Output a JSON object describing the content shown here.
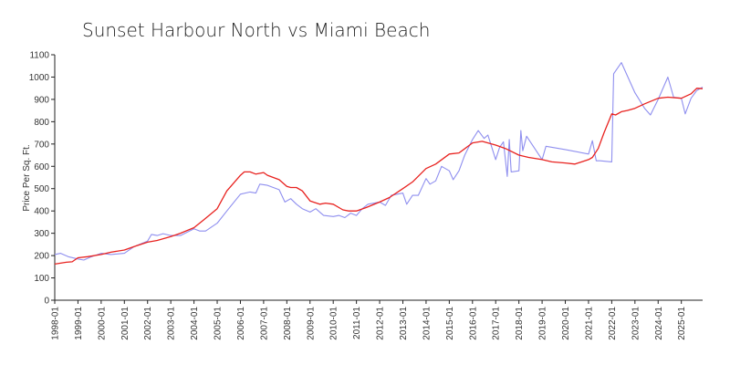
{
  "chart_data": {
    "type": "line",
    "title": "Sunset Harbour North vs Miami Beach",
    "xlabel": "",
    "ylabel": "Price Per Sq. Ft.",
    "ylim": [
      0,
      1100
    ],
    "yticks": [
      0,
      100,
      200,
      300,
      400,
      500,
      600,
      700,
      800,
      900,
      1000,
      1100
    ],
    "xlim": [
      "1998-01",
      "2025-12"
    ],
    "xticks": [
      "1998-01",
      "1999-01",
      "2000-01",
      "2001-01",
      "2002-01",
      "2003-01",
      "2004-01",
      "2005-01",
      "2006-01",
      "2007-01",
      "2008-01",
      "2009-01",
      "2010-01",
      "2011-01",
      "2012-01",
      "2013-01",
      "2014-01",
      "2015-01",
      "2016-01",
      "2017-01",
      "2018-01",
      "2019-01",
      "2020-01",
      "2021-01",
      "2022-01",
      "2023-01",
      "2024-01",
      "2025-01"
    ],
    "grid": false,
    "legend": "none",
    "series": [
      {
        "color": "#e8221f",
        "points": [
          [
            "1998-01",
            162
          ],
          [
            "1998-07",
            170
          ],
          [
            "1998-10",
            172
          ],
          [
            "1999-01",
            190
          ],
          [
            "1999-06",
            195
          ],
          [
            "2000-01",
            205
          ],
          [
            "2000-06",
            215
          ],
          [
            "2001-01",
            225
          ],
          [
            "2001-06",
            240
          ],
          [
            "2002-01",
            260
          ],
          [
            "2002-06",
            268
          ],
          [
            "2003-01",
            285
          ],
          [
            "2003-06",
            300
          ],
          [
            "2004-01",
            325
          ],
          [
            "2004-06",
            360
          ],
          [
            "2005-01",
            410
          ],
          [
            "2005-06",
            490
          ],
          [
            "2006-01",
            560
          ],
          [
            "2006-03",
            575
          ],
          [
            "2006-06",
            575
          ],
          [
            "2006-09",
            565
          ],
          [
            "2007-01",
            572
          ],
          [
            "2007-03",
            560
          ],
          [
            "2007-06",
            550
          ],
          [
            "2007-09",
            540
          ],
          [
            "2008-01",
            510
          ],
          [
            "2008-03",
            505
          ],
          [
            "2008-06",
            505
          ],
          [
            "2008-09",
            490
          ],
          [
            "2009-01",
            445
          ],
          [
            "2009-06",
            430
          ],
          [
            "2009-09",
            435
          ],
          [
            "2010-01",
            430
          ],
          [
            "2010-06",
            405
          ],
          [
            "2010-09",
            400
          ],
          [
            "2011-01",
            400
          ],
          [
            "2011-06",
            415
          ],
          [
            "2012-01",
            440
          ],
          [
            "2012-06",
            460
          ],
          [
            "2013-01",
            500
          ],
          [
            "2013-06",
            530
          ],
          [
            "2014-01",
            590
          ],
          [
            "2014-06",
            610
          ],
          [
            "2015-01",
            655
          ],
          [
            "2015-06",
            660
          ],
          [
            "2016-01",
            705
          ],
          [
            "2016-06",
            712
          ],
          [
            "2017-01",
            695
          ],
          [
            "2017-06",
            680
          ],
          [
            "2018-01",
            650
          ],
          [
            "2018-06",
            640
          ],
          [
            "2019-01",
            630
          ],
          [
            "2019-06",
            620
          ],
          [
            "2020-01",
            615
          ],
          [
            "2020-06",
            610
          ],
          [
            "2021-01",
            630
          ],
          [
            "2021-03",
            640
          ],
          [
            "2021-06",
            680
          ],
          [
            "2021-09",
            750
          ],
          [
            "2022-01",
            835
          ],
          [
            "2022-03",
            830
          ],
          [
            "2022-06",
            845
          ],
          [
            "2022-09",
            850
          ],
          [
            "2023-01",
            860
          ],
          [
            "2023-06",
            880
          ],
          [
            "2024-01",
            905
          ],
          [
            "2024-06",
            910
          ],
          [
            "2025-01",
            905
          ],
          [
            "2025-06",
            925
          ],
          [
            "2025-09",
            950
          ],
          [
            "2025-12",
            948
          ]
        ]
      },
      {
        "color": "#8f8fef",
        "points": [
          [
            "1998-01",
            205
          ],
          [
            "1998-04",
            210
          ],
          [
            "1998-08",
            195
          ],
          [
            "1999-01",
            185
          ],
          [
            "1999-04",
            180
          ],
          [
            "1999-08",
            195
          ],
          [
            "2000-01",
            210
          ],
          [
            "2000-06",
            205
          ],
          [
            "2001-01",
            210
          ],
          [
            "2001-06",
            240
          ],
          [
            "2002-01",
            265
          ],
          [
            "2002-03",
            295
          ],
          [
            "2002-06",
            290
          ],
          [
            "2002-09",
            298
          ],
          [
            "2003-01",
            290
          ],
          [
            "2003-06",
            290
          ],
          [
            "2004-01",
            320
          ],
          [
            "2004-04",
            310
          ],
          [
            "2004-07",
            310
          ],
          [
            "2005-01",
            345
          ],
          [
            "2005-06",
            400
          ],
          [
            "2006-01",
            475
          ],
          [
            "2006-06",
            485
          ],
          [
            "2006-09",
            480
          ],
          [
            "2006-11",
            520
          ],
          [
            "2007-03",
            515
          ],
          [
            "2007-09",
            495
          ],
          [
            "2007-12",
            440
          ],
          [
            "2008-03",
            455
          ],
          [
            "2008-06",
            430
          ],
          [
            "2008-09",
            410
          ],
          [
            "2009-01",
            395
          ],
          [
            "2009-04",
            410
          ],
          [
            "2009-08",
            380
          ],
          [
            "2010-01",
            375
          ],
          [
            "2010-04",
            380
          ],
          [
            "2010-07",
            370
          ],
          [
            "2010-10",
            390
          ],
          [
            "2011-01",
            380
          ],
          [
            "2011-04",
            410
          ],
          [
            "2011-07",
            430
          ],
          [
            "2012-01",
            440
          ],
          [
            "2012-04",
            425
          ],
          [
            "2012-07",
            470
          ],
          [
            "2013-01",
            480
          ],
          [
            "2013-03",
            430
          ],
          [
            "2013-06",
            470
          ],
          [
            "2013-09",
            470
          ],
          [
            "2014-01",
            545
          ],
          [
            "2014-03",
            520
          ],
          [
            "2014-06",
            535
          ],
          [
            "2014-09",
            600
          ],
          [
            "2015-01",
            580
          ],
          [
            "2015-03",
            540
          ],
          [
            "2015-06",
            580
          ],
          [
            "2015-09",
            650
          ],
          [
            "2016-01",
            720
          ],
          [
            "2016-04",
            760
          ],
          [
            "2016-07",
            725
          ],
          [
            "2016-09",
            740
          ],
          [
            "2017-01",
            630
          ],
          [
            "2017-03",
            685
          ],
          [
            "2017-05",
            710
          ],
          [
            "2017-07",
            555
          ],
          [
            "2017-08",
            720
          ],
          [
            "2017-09",
            575
          ],
          [
            "2018-01",
            580
          ],
          [
            "2018-02",
            760
          ],
          [
            "2018-03",
            670
          ],
          [
            "2018-05",
            735
          ],
          [
            "2019-01",
            630
          ],
          [
            "2019-03",
            690
          ],
          [
            "2020-01",
            675
          ],
          [
            "2021-01",
            655
          ],
          [
            "2021-03",
            715
          ],
          [
            "2021-05",
            625
          ],
          [
            "2021-07",
            625
          ],
          [
            "2022-01",
            620
          ],
          [
            "2022-02",
            1015
          ],
          [
            "2022-06",
            1065
          ],
          [
            "2023-01",
            930
          ],
          [
            "2023-06",
            860
          ],
          [
            "2023-09",
            830
          ],
          [
            "2024-01",
            900
          ],
          [
            "2024-06",
            1000
          ],
          [
            "2024-09",
            910
          ],
          [
            "2025-01",
            905
          ],
          [
            "2025-03",
            835
          ],
          [
            "2025-06",
            905
          ],
          [
            "2025-09",
            940
          ],
          [
            "2025-12",
            955
          ]
        ]
      }
    ]
  }
}
